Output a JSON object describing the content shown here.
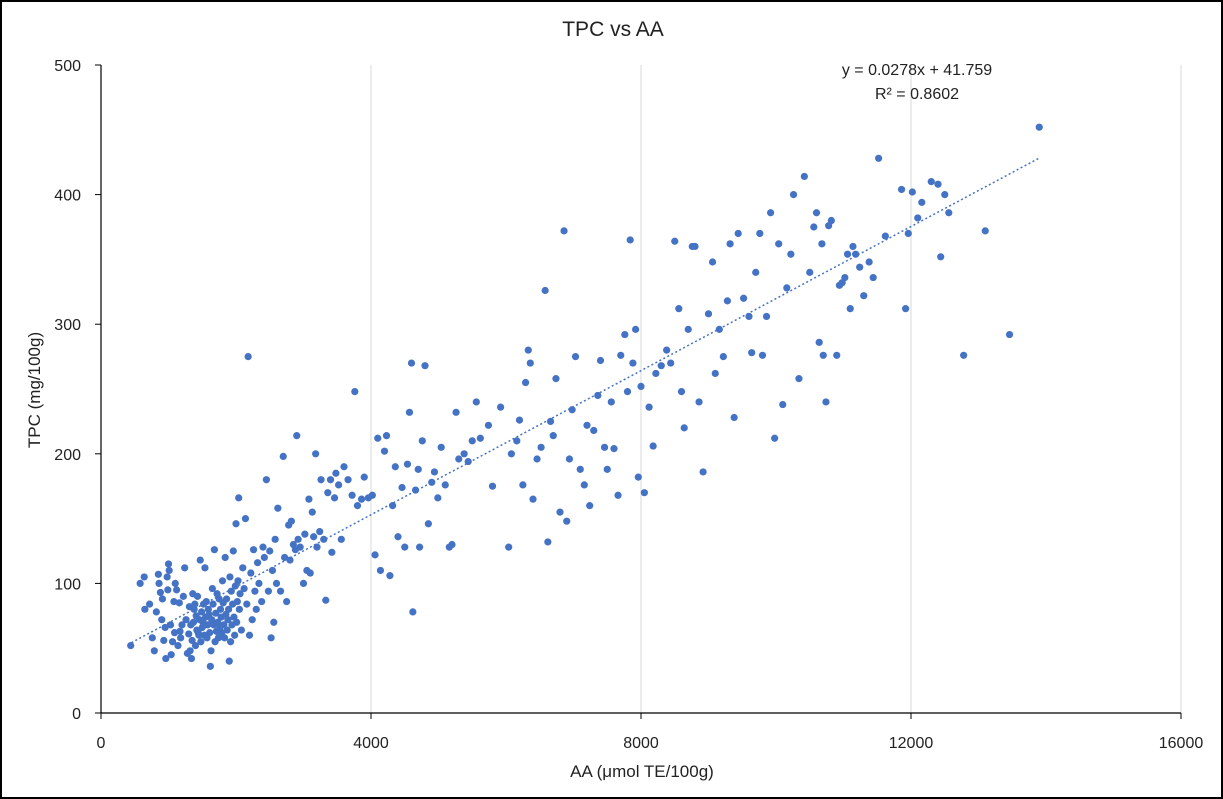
{
  "chart_data": {
    "type": "scatter",
    "title": "TPC vs AA",
    "xlabel": "AA (μmol TE/100g)",
    "ylabel": "TPC (mg/100g)",
    "xlim": [
      0,
      16000
    ],
    "ylim": [
      0,
      500
    ],
    "xticks": [
      "0",
      "4000",
      "8000",
      "12000",
      "16000"
    ],
    "yticks": [
      "0",
      "100",
      "200",
      "300",
      "400",
      "500"
    ],
    "grid": "vertical",
    "legend": "none",
    "marker_color": "#4472C4",
    "trendline": {
      "type": "linear",
      "slope": 0.0278,
      "intercept": 41.759,
      "x_range": [
        450,
        13900
      ],
      "equation": "y = 0.0278x + 41.759",
      "r_squared": "R² = 0.8602",
      "color": "#4472C4"
    },
    "points": [
      [
        440,
        52
      ],
      [
        580,
        100
      ],
      [
        640,
        105
      ],
      [
        650,
        80
      ],
      [
        720,
        84
      ],
      [
        760,
        58
      ],
      [
        790,
        48
      ],
      [
        820,
        78
      ],
      [
        850,
        107
      ],
      [
        860,
        100
      ],
      [
        880,
        93
      ],
      [
        900,
        72
      ],
      [
        910,
        88
      ],
      [
        930,
        56
      ],
      [
        950,
        66
      ],
      [
        960,
        42
      ],
      [
        980,
        105
      ],
      [
        990,
        95
      ],
      [
        1000,
        115
      ],
      [
        1010,
        110
      ],
      [
        1030,
        68
      ],
      [
        1040,
        45
      ],
      [
        1060,
        55
      ],
      [
        1080,
        86
      ],
      [
        1090,
        62
      ],
      [
        1100,
        100
      ],
      [
        1120,
        95
      ],
      [
        1140,
        52
      ],
      [
        1160,
        85
      ],
      [
        1170,
        63
      ],
      [
        1180,
        58
      ],
      [
        1200,
        68
      ],
      [
        1220,
        90
      ],
      [
        1240,
        112
      ],
      [
        1260,
        72
      ],
      [
        1280,
        46
      ],
      [
        1300,
        61
      ],
      [
        1310,
        82
      ],
      [
        1320,
        48
      ],
      [
        1330,
        68
      ],
      [
        1340,
        42
      ],
      [
        1350,
        56
      ],
      [
        1360,
        92
      ],
      [
        1370,
        70
      ],
      [
        1380,
        80
      ],
      [
        1390,
        84
      ],
      [
        1400,
        52
      ],
      [
        1410,
        75
      ],
      [
        1420,
        64
      ],
      [
        1430,
        90
      ],
      [
        1440,
        62
      ],
      [
        1450,
        60
      ],
      [
        1460,
        72
      ],
      [
        1470,
        118
      ],
      [
        1480,
        55
      ],
      [
        1490,
        78
      ],
      [
        1500,
        66
      ],
      [
        1510,
        70
      ],
      [
        1520,
        84
      ],
      [
        1530,
        60
      ],
      [
        1540,
        112
      ],
      [
        1550,
        74
      ],
      [
        1560,
        86
      ],
      [
        1570,
        58
      ],
      [
        1580,
        68
      ],
      [
        1590,
        80
      ],
      [
        1600,
        76
      ],
      [
        1610,
        62
      ],
      [
        1620,
        36
      ],
      [
        1630,
        48
      ],
      [
        1640,
        72
      ],
      [
        1650,
        96
      ],
      [
        1660,
        84
      ],
      [
        1670,
        68
      ],
      [
        1680,
        126
      ],
      [
        1690,
        55
      ],
      [
        1700,
        77
      ],
      [
        1710,
        63
      ],
      [
        1720,
        92
      ],
      [
        1730,
        70
      ],
      [
        1740,
        58
      ],
      [
        1750,
        88
      ],
      [
        1760,
        66
      ],
      [
        1770,
        80
      ],
      [
        1780,
        74
      ],
      [
        1790,
        62
      ],
      [
        1800,
        102
      ],
      [
        1810,
        85
      ],
      [
        1820,
        68
      ],
      [
        1830,
        58
      ],
      [
        1840,
        120
      ],
      [
        1850,
        76
      ],
      [
        1860,
        88
      ],
      [
        1870,
        64
      ],
      [
        1880,
        72
      ],
      [
        1890,
        80
      ],
      [
        1900,
        40
      ],
      [
        1910,
        105
      ],
      [
        1920,
        55
      ],
      [
        1930,
        94
      ],
      [
        1940,
        68
      ],
      [
        1950,
        84
      ],
      [
        1960,
        125
      ],
      [
        1970,
        74
      ],
      [
        1980,
        60
      ],
      [
        1990,
        98
      ],
      [
        2000,
        146
      ],
      [
        2010,
        70
      ],
      [
        2020,
        86
      ],
      [
        2030,
        102
      ],
      [
        2040,
        166
      ],
      [
        2050,
        80
      ],
      [
        2060,
        92
      ],
      [
        2080,
        64
      ],
      [
        2100,
        112
      ],
      [
        2120,
        96
      ],
      [
        2140,
        150
      ],
      [
        2160,
        84
      ],
      [
        2180,
        275
      ],
      [
        2200,
        60
      ],
      [
        2220,
        108
      ],
      [
        2240,
        72
      ],
      [
        2260,
        126
      ],
      [
        2280,
        94
      ],
      [
        2300,
        80
      ],
      [
        2320,
        116
      ],
      [
        2340,
        100
      ],
      [
        2380,
        86
      ],
      [
        2400,
        128
      ],
      [
        2420,
        120
      ],
      [
        2450,
        180
      ],
      [
        2480,
        94
      ],
      [
        2500,
        125
      ],
      [
        2520,
        58
      ],
      [
        2540,
        110
      ],
      [
        2560,
        70
      ],
      [
        2580,
        134
      ],
      [
        2600,
        100
      ],
      [
        2620,
        158
      ],
      [
        2660,
        94
      ],
      [
        2700,
        198
      ],
      [
        2720,
        120
      ],
      [
        2750,
        86
      ],
      [
        2780,
        145
      ],
      [
        2800,
        118
      ],
      [
        2820,
        148
      ],
      [
        2850,
        130
      ],
      [
        2880,
        126
      ],
      [
        2900,
        214
      ],
      [
        2920,
        134
      ],
      [
        2950,
        128
      ],
      [
        3000,
        100
      ],
      [
        3020,
        138
      ],
      [
        3050,
        110
      ],
      [
        3080,
        165
      ],
      [
        3100,
        108
      ],
      [
        3130,
        155
      ],
      [
        3150,
        136
      ],
      [
        3180,
        200
      ],
      [
        3200,
        128
      ],
      [
        3240,
        140
      ],
      [
        3260,
        180
      ],
      [
        3300,
        134
      ],
      [
        3330,
        87
      ],
      [
        3360,
        170
      ],
      [
        3400,
        180
      ],
      [
        3420,
        124
      ],
      [
        3460,
        166
      ],
      [
        3480,
        185
      ],
      [
        3520,
        176
      ],
      [
        3560,
        134
      ],
      [
        3600,
        190
      ],
      [
        3660,
        180
      ],
      [
        3720,
        168
      ],
      [
        3760,
        248
      ],
      [
        3800,
        160
      ],
      [
        3860,
        165
      ],
      [
        3900,
        182
      ],
      [
        3960,
        166
      ],
      [
        4020,
        168
      ],
      [
        4060,
        122
      ],
      [
        4100,
        212
      ],
      [
        4140,
        110
      ],
      [
        4200,
        202
      ],
      [
        4230,
        214
      ],
      [
        4280,
        106
      ],
      [
        4320,
        160
      ],
      [
        4360,
        190
      ],
      [
        4400,
        136
      ],
      [
        4460,
        174
      ],
      [
        4500,
        128
      ],
      [
        4540,
        192
      ],
      [
        4570,
        232
      ],
      [
        4600,
        270
      ],
      [
        4620,
        78
      ],
      [
        4660,
        172
      ],
      [
        4700,
        188
      ],
      [
        4720,
        128
      ],
      [
        4760,
        210
      ],
      [
        4800,
        268
      ],
      [
        4850,
        146
      ],
      [
        4900,
        178
      ],
      [
        4940,
        186
      ],
      [
        4990,
        166
      ],
      [
        5040,
        205
      ],
      [
        5100,
        176
      ],
      [
        5160,
        128
      ],
      [
        5200,
        130
      ],
      [
        5260,
        232
      ],
      [
        5300,
        196
      ],
      [
        5380,
        200
      ],
      [
        5440,
        194
      ],
      [
        5500,
        210
      ],
      [
        5560,
        240
      ],
      [
        5620,
        212
      ],
      [
        5740,
        222
      ],
      [
        5800,
        175
      ],
      [
        5920,
        236
      ],
      [
        6040,
        128
      ],
      [
        6080,
        200
      ],
      [
        6160,
        210
      ],
      [
        6200,
        226
      ],
      [
        6250,
        176
      ],
      [
        6290,
        255
      ],
      [
        6330,
        280
      ],
      [
        6360,
        270
      ],
      [
        6400,
        165
      ],
      [
        6460,
        196
      ],
      [
        6520,
        205
      ],
      [
        6580,
        326
      ],
      [
        6620,
        132
      ],
      [
        6660,
        225
      ],
      [
        6700,
        214
      ],
      [
        6740,
        258
      ],
      [
        6800,
        155
      ],
      [
        6860,
        372
      ],
      [
        6900,
        148
      ],
      [
        6940,
        196
      ],
      [
        6980,
        234
      ],
      [
        7030,
        275
      ],
      [
        7100,
        188
      ],
      [
        7160,
        176
      ],
      [
        7200,
        222
      ],
      [
        7240,
        160
      ],
      [
        7300,
        218
      ],
      [
        7360,
        245
      ],
      [
        7400,
        272
      ],
      [
        7460,
        205
      ],
      [
        7500,
        188
      ],
      [
        7560,
        240
      ],
      [
        7600,
        204
      ],
      [
        7660,
        168
      ],
      [
        7700,
        276
      ],
      [
        7760,
        292
      ],
      [
        7800,
        248
      ],
      [
        7840,
        365
      ],
      [
        7880,
        270
      ],
      [
        7920,
        296
      ],
      [
        7960,
        182
      ],
      [
        8000,
        252
      ],
      [
        8050,
        170
      ],
      [
        8120,
        236
      ],
      [
        8180,
        206
      ],
      [
        8220,
        262
      ],
      [
        8300,
        268
      ],
      [
        8380,
        280
      ],
      [
        8440,
        270
      ],
      [
        8500,
        364
      ],
      [
        8560,
        312
      ],
      [
        8600,
        248
      ],
      [
        8640,
        220
      ],
      [
        8700,
        296
      ],
      [
        8760,
        360
      ],
      [
        8800,
        360
      ],
      [
        8860,
        240
      ],
      [
        8920,
        186
      ],
      [
        9000,
        308
      ],
      [
        9060,
        348
      ],
      [
        9100,
        262
      ],
      [
        9160,
        296
      ],
      [
        9220,
        275
      ],
      [
        9280,
        318
      ],
      [
        9320,
        362
      ],
      [
        9380,
        228
      ],
      [
        9440,
        370
      ],
      [
        9520,
        320
      ],
      [
        9600,
        306
      ],
      [
        9640,
        278
      ],
      [
        9700,
        340
      ],
      [
        9760,
        370
      ],
      [
        9800,
        276
      ],
      [
        9860,
        306
      ],
      [
        9920,
        386
      ],
      [
        9980,
        212
      ],
      [
        10040,
        362
      ],
      [
        10100,
        238
      ],
      [
        10160,
        328
      ],
      [
        10220,
        354
      ],
      [
        10260,
        400
      ],
      [
        10340,
        258
      ],
      [
        10420,
        414
      ],
      [
        10500,
        340
      ],
      [
        10560,
        375
      ],
      [
        10600,
        386
      ],
      [
        10640,
        286
      ],
      [
        10680,
        362
      ],
      [
        10700,
        276
      ],
      [
        10740,
        240
      ],
      [
        10780,
        376
      ],
      [
        10820,
        380
      ],
      [
        10900,
        276
      ],
      [
        10940,
        330
      ],
      [
        10980,
        332
      ],
      [
        11020,
        336
      ],
      [
        11060,
        354
      ],
      [
        11100,
        312
      ],
      [
        11140,
        360
      ],
      [
        11180,
        354
      ],
      [
        11240,
        344
      ],
      [
        11300,
        322
      ],
      [
        11380,
        348
      ],
      [
        11440,
        336
      ],
      [
        11520,
        428
      ],
      [
        11620,
        368
      ],
      [
        11860,
        404
      ],
      [
        11920,
        312
      ],
      [
        11960,
        370
      ],
      [
        12020,
        402
      ],
      [
        12100,
        382
      ],
      [
        12160,
        394
      ],
      [
        12300,
        410
      ],
      [
        12400,
        408
      ],
      [
        12440,
        352
      ],
      [
        12500,
        400
      ],
      [
        12560,
        386
      ],
      [
        12780,
        276
      ],
      [
        13100,
        372
      ],
      [
        13460,
        292
      ],
      [
        13900,
        452
      ]
    ]
  }
}
